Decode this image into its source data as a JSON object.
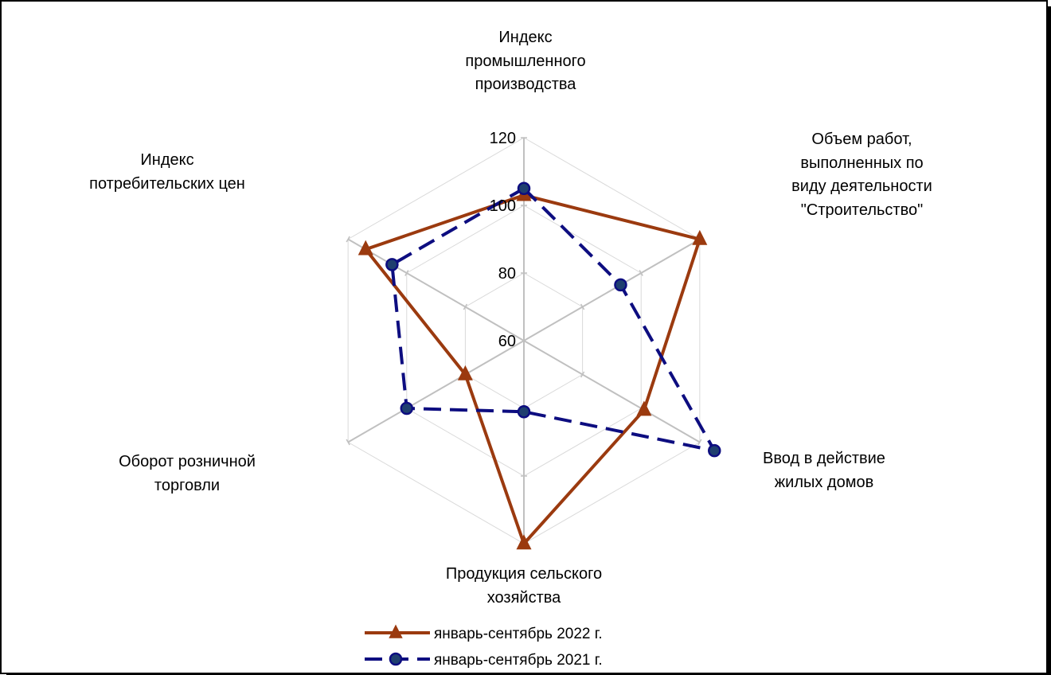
{
  "chart_data": {
    "type": "radar",
    "categories": [
      "Индекс\nпромышленного\nпроизводства",
      "Объем работ,\nвыполненных  по\nвиду деятельности\n\"Строительство\"",
      "Ввод в действие\nжилых домов",
      "Продукция сельского\nхозяйства",
      "Оборот розничной\nторговли",
      "Индекс\nпотребительских цен"
    ],
    "series": [
      {
        "name": "январь-сентябрь 2022 г.",
        "values": [
          103,
          120,
          101,
          120,
          80,
          114
        ],
        "color": "#9b3a0f",
        "line": "solid",
        "marker": "triangle"
      },
      {
        "name": "январь-сентябрь 2021 г.",
        "values": [
          105,
          93,
          125,
          81,
          100,
          105
        ],
        "color": "#0d0d80",
        "line": "dashed",
        "marker": "circle"
      }
    ],
    "rlim": [
      60,
      120
    ],
    "ticks": [
      60,
      80,
      100,
      120
    ],
    "grid": true,
    "legend_position": "bottom"
  }
}
